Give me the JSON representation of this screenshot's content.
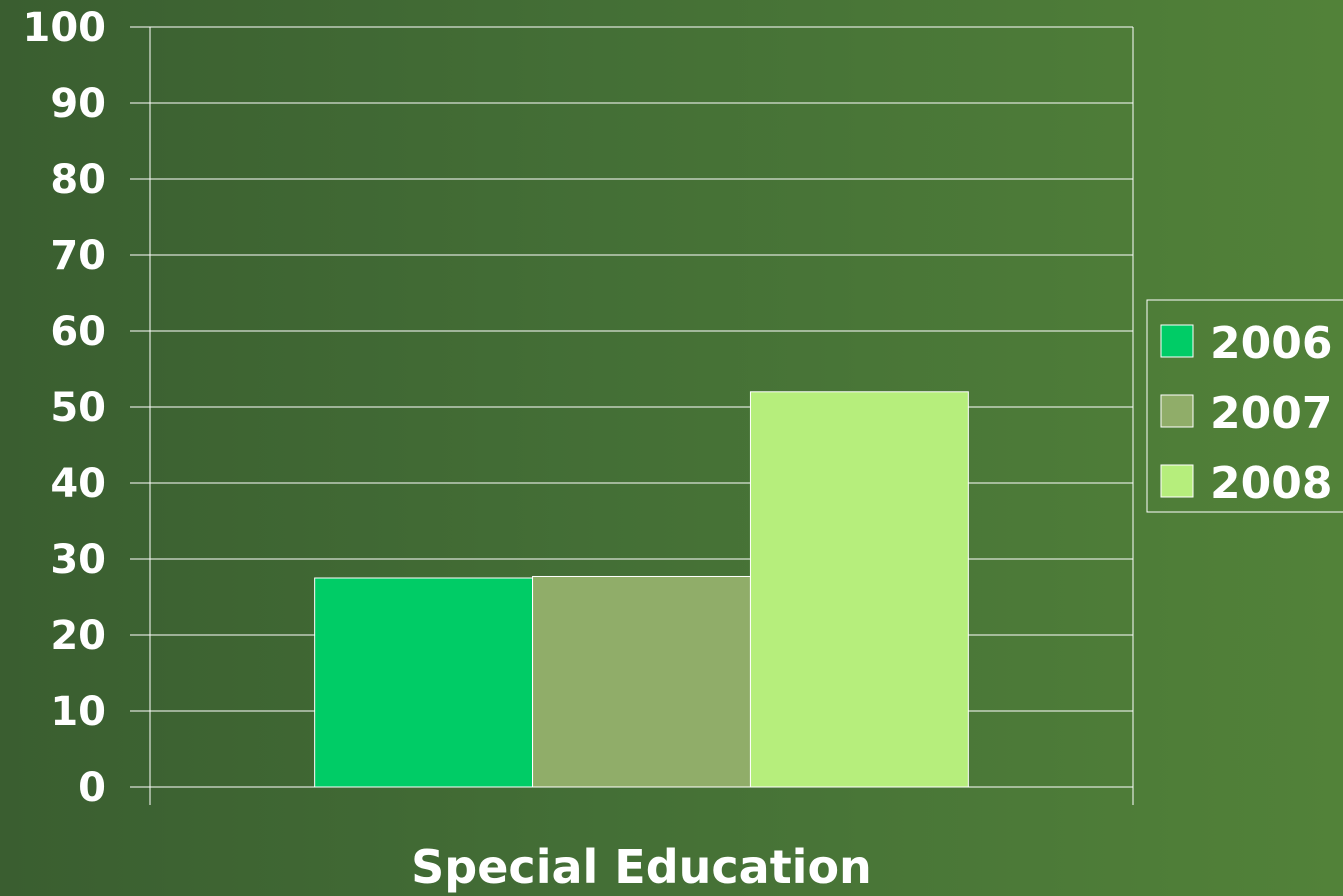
{
  "chart_data": {
    "type": "bar",
    "categories": [
      "Special Education"
    ],
    "series": [
      {
        "name": "2006",
        "values": [
          27.5
        ],
        "color": "#00cc66"
      },
      {
        "name": "2007",
        "values": [
          27.7
        ],
        "color": "#90ad69"
      },
      {
        "name": "2008",
        "values": [
          52
        ],
        "color": "#b6ee7c"
      }
    ],
    "ylim": [
      0,
      100
    ],
    "yticks": [
      "0",
      "10",
      "20",
      "30",
      "40",
      "50",
      "60",
      "70",
      "80",
      "90",
      "100"
    ],
    "grid": true,
    "legend_position": "right"
  }
}
